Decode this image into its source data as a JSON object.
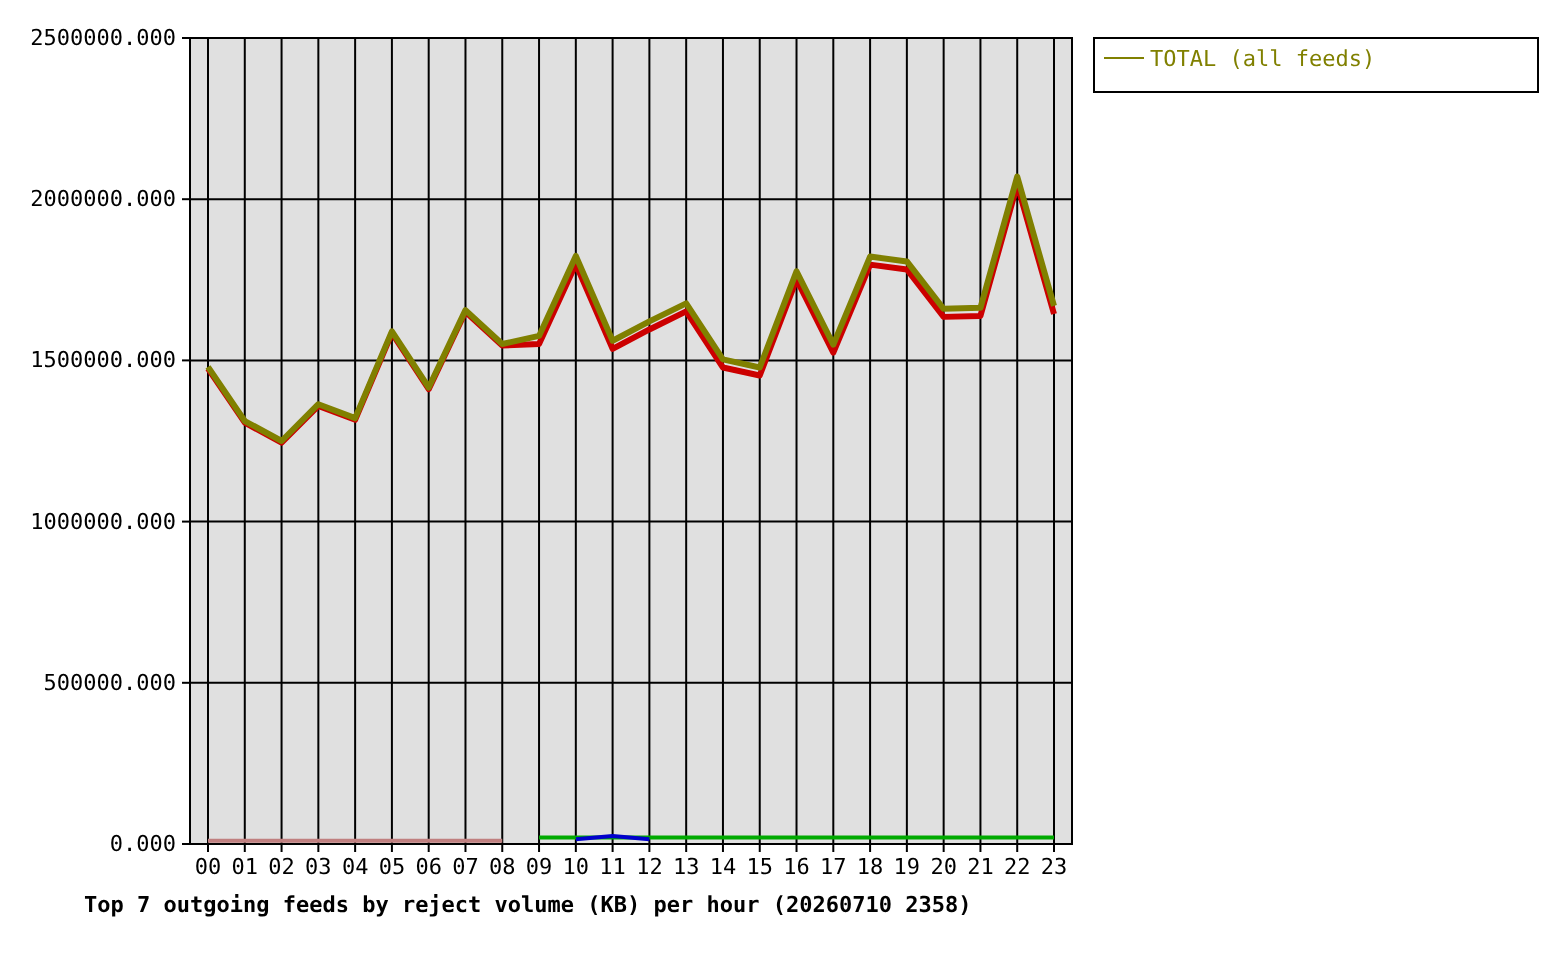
{
  "chart_data": {
    "type": "line",
    "title": "Top 7 outgoing feeds by reject volume (KB) per hour (20260710 2358)",
    "categories": [
      "00",
      "01",
      "02",
      "03",
      "04",
      "05",
      "06",
      "07",
      "08",
      "09",
      "10",
      "11",
      "12",
      "13",
      "14",
      "15",
      "16",
      "17",
      "18",
      "19",
      "20",
      "21",
      "22",
      "23"
    ],
    "ylim": [
      0,
      2500000
    ],
    "yticks": [
      {
        "value": 0,
        "label": "0.000"
      },
      {
        "value": 500000,
        "label": "500000.000"
      },
      {
        "value": 1000000,
        "label": "1000000.000"
      },
      {
        "value": 1500000,
        "label": "1500000.000"
      },
      {
        "value": 2000000,
        "label": "2000000.000"
      },
      {
        "value": 2500000,
        "label": "2500000.000"
      }
    ],
    "grid": true,
    "legend": "top right",
    "marker": "none",
    "line_style": "solid",
    "series": [
      {
        "color": "#cc0000",
        "values": [
          1475000,
          1307000,
          1245000,
          1359000,
          1316000,
          1585000,
          1411000,
          1651000,
          1546000,
          1551000,
          1799000,
          1536000,
          1596000,
          1652000,
          1478000,
          1453000,
          1751000,
          1524000,
          1797000,
          1782000,
          1635000,
          1638000,
          2045000,
          1644000
        ]
      },
      {
        "color": "#00aa00",
        "values": [
          null,
          null,
          null,
          null,
          null,
          null,
          null,
          null,
          null,
          20000,
          20000,
          20000,
          20000,
          20000,
          20000,
          20000,
          20000,
          20000,
          20000,
          20000,
          20000,
          20000,
          20000,
          20000
        ]
      },
      {
        "color": "#0000cc",
        "values": [
          null,
          null,
          null,
          null,
          null,
          null,
          null,
          null,
          null,
          null,
          15000,
          25000,
          15000,
          null,
          null,
          null,
          null,
          null,
          null,
          null,
          null,
          null,
          null,
          null
        ]
      },
      {
        "color": "#c08080",
        "values": [
          10000,
          10000,
          10000,
          10000,
          10000,
          10000,
          10000,
          10000,
          10000,
          null,
          null,
          null,
          null,
          null,
          null,
          null,
          null,
          null,
          null,
          null,
          null,
          null,
          null,
          null
        ]
      },
      {
        "name": "TOTAL (all feeds)",
        "color": "#808000",
        "values": [
          1480000,
          1312000,
          1250000,
          1364000,
          1321000,
          1590000,
          1416000,
          1656000,
          1551000,
          1576000,
          1824000,
          1561000,
          1621000,
          1677000,
          1503000,
          1478000,
          1776000,
          1549000,
          1822000,
          1807000,
          1660000,
          1663000,
          2070000,
          1669000
        ]
      }
    ]
  }
}
